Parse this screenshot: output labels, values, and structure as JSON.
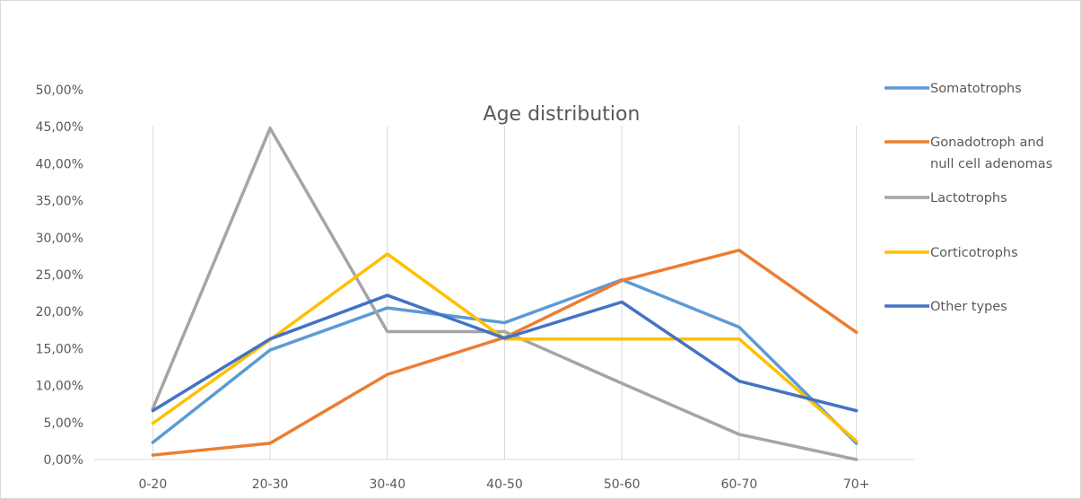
{
  "chart_data": {
    "type": "line",
    "title": "Age distribution",
    "xlabel": "",
    "ylabel": "",
    "categories": [
      "0-20",
      "20-30",
      "30-40",
      "40-50",
      "50-60",
      "60-70",
      "70+"
    ],
    "y_ticks": [
      "0,00%",
      "5,00%",
      "10,00%",
      "15,00%",
      "20,00%",
      "25,00%",
      "30,00%",
      "35,00%",
      "40,00%",
      "45,00%",
      "50,00%"
    ],
    "ylim": [
      0,
      50
    ],
    "grid": "vertical",
    "legend_position": "right",
    "series": [
      {
        "name": "Somatotrophs",
        "color": "#5b9bd5",
        "values": [
          2.3,
          14.8,
          20.5,
          18.5,
          24.3,
          17.9,
          2.2
        ]
      },
      {
        "name": "Gonadotroph and null cell adenomas",
        "color": "#ed7d31",
        "values": [
          0.6,
          2.2,
          11.5,
          16.5,
          24.2,
          28.3,
          17.2
        ]
      },
      {
        "name": "Lactotrophs",
        "color": "#a5a5a5",
        "values": [
          6.9,
          44.8,
          17.3,
          17.3,
          10.3,
          3.4,
          0.0
        ]
      },
      {
        "name": "Corticotrophs",
        "color": "#ffc000",
        "values": [
          4.9,
          16.2,
          27.8,
          16.3,
          16.3,
          16.3,
          2.5
        ]
      },
      {
        "name": "Other types",
        "color": "#4472c4",
        "values": [
          6.6,
          16.3,
          22.2,
          16.4,
          21.3,
          10.6,
          6.6
        ]
      }
    ]
  }
}
